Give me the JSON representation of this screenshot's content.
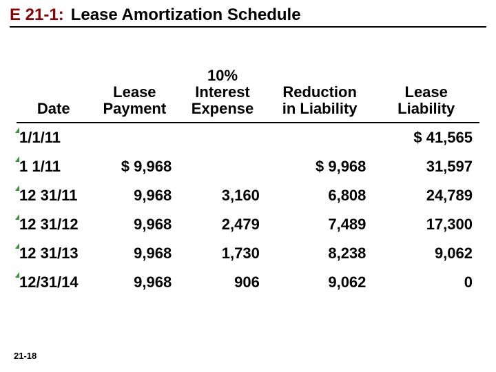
{
  "title": {
    "code": "E 21-1:",
    "code_color": "#8B0000",
    "text": "Lease Amortization Schedule"
  },
  "footer": "21-18",
  "table": {
    "headers": {
      "date": "Date",
      "payment": "Lease Payment",
      "interest": "10% Interest Expense",
      "reduction": "Reduction in Liability",
      "liability": "Lease Liability"
    },
    "header_lines": {
      "date": [
        "",
        "",
        "Date"
      ],
      "payment": [
        "",
        "Lease",
        "Payment"
      ],
      "interest": [
        "10%",
        "Interest",
        "Expense"
      ],
      "reduction": [
        "",
        "Reduction",
        "in Liability"
      ],
      "liability": [
        "",
        "Lease",
        "Liability"
      ]
    },
    "rows": [
      {
        "date": "1/1/11",
        "payment": "",
        "interest": "",
        "reduction": "",
        "liability": "$ 41,565"
      },
      {
        "date": "1 1/11",
        "payment": "$ 9,968",
        "interest": "",
        "reduction": "$ 9,968",
        "liability": "31,597"
      },
      {
        "date": "12 31/11",
        "payment": "9,968",
        "interest": "3,160",
        "reduction": "6,808",
        "liability": "24,789"
      },
      {
        "date": "12 31/12",
        "payment": "9,968",
        "interest": "2,479",
        "reduction": "7,489",
        "liability": "17,300"
      },
      {
        "date": "12 31/13",
        "payment": "9,968",
        "interest": "1,730",
        "reduction": "8,238",
        "liability": "9,062"
      },
      {
        "date": "12/31/14",
        "payment": "9,968",
        "interest": "906",
        "reduction": "9,062",
        "liability": "0"
      }
    ]
  },
  "style": {
    "font_family": "Arial",
    "title_fontsize": 24,
    "cell_fontsize": 22,
    "rule_color": "#000000",
    "tick_color": "#1a7a1a",
    "background": "#ffffff"
  }
}
